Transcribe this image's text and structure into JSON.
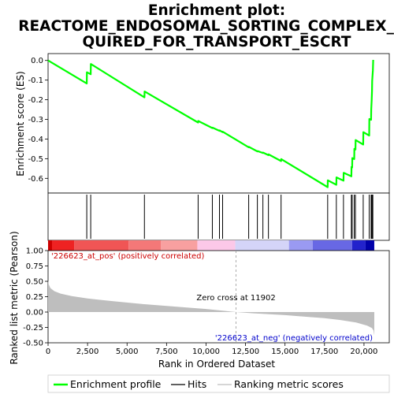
{
  "chart_data": {
    "type": "line",
    "title_lines": [
      "Enrichment plot:",
      "REACTOME_ENDOSOMAL_SORTING_COMPLEX_RE",
      "QUIRED_FOR_TRANSPORT_ESCRT"
    ],
    "x_range": [
      0,
      21600
    ],
    "x_ticks": [
      0,
      2500,
      5000,
      7500,
      10000,
      12500,
      15000,
      17500,
      20000
    ],
    "x_tick_labels": [
      "0",
      "2,500",
      "5,000",
      "7,500",
      "10,000",
      "12,500",
      "15,000",
      "17,500",
      "20,000"
    ],
    "xlabel": "Rank in Ordered Dataset",
    "es_panel": {
      "ylabel": "Enrichment score (ES)",
      "ylim": [
        -0.675,
        0.035
      ],
      "y_ticks": [
        0.0,
        -0.1,
        -0.2,
        -0.3,
        -0.4,
        -0.5,
        -0.6
      ],
      "y_tick_labels": [
        "0.0",
        "-0.1",
        "-0.2",
        "-0.3",
        "-0.4",
        "-0.5",
        "-0.6"
      ],
      "color": "#00ff00",
      "profile": [
        [
          0,
          0.0
        ],
        [
          2450,
          -0.117
        ],
        [
          2460,
          -0.06
        ],
        [
          2700,
          -0.07
        ],
        [
          2710,
          -0.018
        ],
        [
          6100,
          -0.188
        ],
        [
          6110,
          -0.158
        ],
        [
          9500,
          -0.316
        ],
        [
          9510,
          -0.308
        ],
        [
          10400,
          -0.344
        ],
        [
          10410,
          -0.342
        ],
        [
          10850,
          -0.358
        ],
        [
          10860,
          -0.356
        ],
        [
          11050,
          -0.365
        ],
        [
          11060,
          -0.363
        ],
        [
          12700,
          -0.442
        ],
        [
          12710,
          -0.44
        ],
        [
          13250,
          -0.463
        ],
        [
          13260,
          -0.461
        ],
        [
          13600,
          -0.471
        ],
        [
          13610,
          -0.469
        ],
        [
          13950,
          -0.482
        ],
        [
          13960,
          -0.478
        ],
        [
          14750,
          -0.512
        ],
        [
          14760,
          -0.502
        ],
        [
          17700,
          -0.645
        ],
        [
          17710,
          -0.61
        ],
        [
          18250,
          -0.633
        ],
        [
          18260,
          -0.595
        ],
        [
          18700,
          -0.612
        ],
        [
          18710,
          -0.572
        ],
        [
          19200,
          -0.59
        ],
        [
          19210,
          -0.542
        ],
        [
          19250,
          -0.545
        ],
        [
          19260,
          -0.497
        ],
        [
          19380,
          -0.502
        ],
        [
          19390,
          -0.45
        ],
        [
          19460,
          -0.453
        ],
        [
          19470,
          -0.405
        ],
        [
          19950,
          -0.428
        ],
        [
          19960,
          -0.365
        ],
        [
          20330,
          -0.382
        ],
        [
          20340,
          -0.298
        ],
        [
          20450,
          -0.302
        ],
        [
          20460,
          -0.25
        ],
        [
          20490,
          -0.2
        ],
        [
          20510,
          -0.155
        ],
        [
          20520,
          -0.105
        ],
        [
          20560,
          -0.05
        ],
        [
          20580,
          0.003
        ]
      ]
    },
    "hits": [
      2450,
      2700,
      6100,
      9500,
      10400,
      10850,
      11050,
      12700,
      13250,
      13600,
      13950,
      14750,
      17700,
      18250,
      18700,
      19200,
      19250,
      19380,
      19460,
      19950,
      20330,
      20450,
      20490,
      20520,
      20560
    ],
    "color_bar": [
      {
        "from": 0,
        "to": 250,
        "color": "#cc0000"
      },
      {
        "from": 250,
        "to": 1650,
        "color": "#ee2222"
      },
      {
        "from": 1650,
        "to": 5100,
        "color": "#f05555"
      },
      {
        "from": 5100,
        "to": 7150,
        "color": "#f47878"
      },
      {
        "from": 7150,
        "to": 9450,
        "color": "#f8a0a0"
      },
      {
        "from": 9450,
        "to": 11850,
        "color": "#fcc8e8"
      },
      {
        "from": 11850,
        "to": 15250,
        "color": "#d4d4f8"
      },
      {
        "from": 15250,
        "to": 16750,
        "color": "#9a9af2"
      },
      {
        "from": 16750,
        "to": 19250,
        "color": "#6868e4"
      },
      {
        "from": 19250,
        "to": 20100,
        "color": "#2222cc"
      },
      {
        "from": 20100,
        "to": 20650,
        "color": "#0000aa"
      }
    ],
    "metric_panel": {
      "ylabel": "Ranked list metric (Pearson)",
      "ylim": [
        -0.5,
        1.0
      ],
      "y_ticks": [
        1.0,
        0.75,
        0.5,
        0.25,
        0.0,
        -0.25,
        -0.5
      ],
      "y_tick_labels": [
        "1.00",
        "0.75",
        "0.50",
        "0.25",
        "0.00",
        "-0.25",
        "-0.50"
      ],
      "fill_color": "#bebebe",
      "metric": [
        [
          0,
          0.52
        ],
        [
          40,
          0.45
        ],
        [
          150,
          0.39
        ],
        [
          400,
          0.34
        ],
        [
          800,
          0.3
        ],
        [
          1500,
          0.26
        ],
        [
          2500,
          0.22
        ],
        [
          4000,
          0.18
        ],
        [
          6000,
          0.13
        ],
        [
          8000,
          0.09
        ],
        [
          10000,
          0.05
        ],
        [
          11902,
          0.0
        ],
        [
          13000,
          -0.02
        ],
        [
          15000,
          -0.05
        ],
        [
          16500,
          -0.08
        ],
        [
          17500,
          -0.1
        ],
        [
          18500,
          -0.13
        ],
        [
          19500,
          -0.17
        ],
        [
          20200,
          -0.22
        ],
        [
          20500,
          -0.26
        ],
        [
          20600,
          -0.3
        ],
        [
          20650,
          -0.38
        ]
      ],
      "zero_cross_x": 11902,
      "zero_cross_label": "Zero cross at 11902",
      "pos_label": "'226623_at_pos' (positively correlated)",
      "neg_label": "'226623_at_neg' (negatively correlated)",
      "pos_color": "#cc0000",
      "neg_color": "#0000cc"
    },
    "legend": [
      {
        "label": "Enrichment profile",
        "color": "#00ff00"
      },
      {
        "label": "Hits",
        "color": "#000000"
      },
      {
        "label": "Ranking metric scores",
        "color": "#bebebe"
      }
    ]
  }
}
